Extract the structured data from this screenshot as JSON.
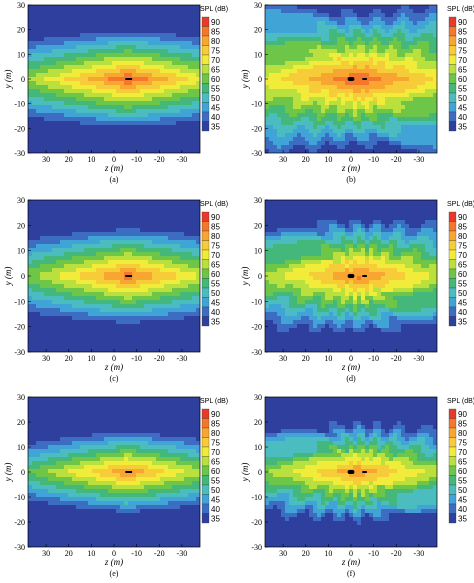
{
  "chart_data": [
    {
      "type": "heatmap",
      "label": "(a)",
      "colorbar": {
        "title": "SPL (dB)",
        "levels": [
          "90",
          "85",
          "80",
          "75",
          "70",
          "65",
          "60",
          "55",
          "50",
          "45",
          "40",
          "35"
        ]
      },
      "xlabel": "z (m)",
      "ylabel": "y (m)",
      "xlim": [
        38,
        -38
      ],
      "ylim": [
        -30,
        30
      ],
      "xticks": [
        "30",
        "20",
        "10",
        "0",
        "-10",
        "-20",
        "-30"
      ],
      "yticks": [
        "-30",
        "-20",
        "-10",
        "0",
        "10",
        "20",
        "30"
      ],
      "field": {
        "style": "smooth",
        "center_z": -6,
        "peak_db": 90,
        "decay_z": 0.55,
        "decay_y": 2.6,
        "ripple": 0
      }
    },
    {
      "type": "heatmap",
      "label": "(b)",
      "colorbar": {
        "title": "SPL (dB)",
        "levels": [
          "90",
          "85",
          "80",
          "75",
          "70",
          "65",
          "60",
          "55",
          "50",
          "45",
          "40",
          "35"
        ]
      },
      "xlabel": "z (m)",
      "ylabel": "y (m)",
      "xlim": [
        38,
        -38
      ],
      "ylim": [
        -30,
        30
      ],
      "xticks": [
        "30",
        "20",
        "10",
        "0",
        "-10",
        "-20",
        "-30"
      ],
      "yticks": [
        "-30",
        "-20",
        "-10",
        "0",
        "10",
        "20",
        "30"
      ],
      "field": {
        "style": "rippled",
        "center_z": -3,
        "peak_db": 90,
        "decay_z": 0.45,
        "decay_y": 1.9,
        "ripple": 6
      }
    },
    {
      "type": "heatmap",
      "label": "(c)",
      "colorbar": {
        "title": "SPL (dB)",
        "levels": [
          "90",
          "85",
          "80",
          "75",
          "70",
          "65",
          "60",
          "55",
          "50",
          "45",
          "40",
          "35"
        ]
      },
      "xlabel": "z (m)",
      "ylabel": "y (m)",
      "xlim": [
        38,
        -38
      ],
      "ylim": [
        -30,
        30
      ],
      "xticks": [
        "30",
        "20",
        "10",
        "0",
        "-10",
        "-20",
        "-30"
      ],
      "yticks": [
        "-30",
        "-20",
        "-10",
        "0",
        "10",
        "20",
        "30"
      ],
      "field": {
        "style": "smooth",
        "center_z": -6,
        "peak_db": 88,
        "decay_z": 0.55,
        "decay_y": 2.6,
        "ripple": 0
      }
    },
    {
      "type": "heatmap",
      "label": "(d)",
      "colorbar": {
        "title": "SPL (dB)",
        "levels": [
          "90",
          "85",
          "80",
          "75",
          "70",
          "65",
          "60",
          "55",
          "50",
          "45",
          "40",
          "35"
        ]
      },
      "xlabel": "z (m)",
      "ylabel": "y (m)",
      "xlim": [
        38,
        -38
      ],
      "ylim": [
        -30,
        30
      ],
      "xticks": [
        "30",
        "20",
        "10",
        "0",
        "-10",
        "-20",
        "-30"
      ],
      "yticks": [
        "-30",
        "-20",
        "-10",
        "0",
        "10",
        "20",
        "30"
      ],
      "field": {
        "style": "rippled",
        "center_z": -3,
        "peak_db": 87,
        "decay_z": 0.5,
        "decay_y": 2.2,
        "ripple": 7
      }
    },
    {
      "type": "heatmap",
      "label": "(e)",
      "colorbar": {
        "title": "SPL (dB)",
        "levels": [
          "90",
          "85",
          "80",
          "75",
          "70",
          "65",
          "60",
          "55",
          "50",
          "45",
          "40",
          "35"
        ]
      },
      "xlabel": "z (m)",
      "ylabel": "y (m)",
      "xlim": [
        38,
        -38
      ],
      "ylim": [
        -30,
        30
      ],
      "xticks": [
        "30",
        "20",
        "10",
        "0",
        "-10",
        "-20",
        "-30"
      ],
      "yticks": [
        "-30",
        "-20",
        "-10",
        "0",
        "10",
        "20",
        "30"
      ],
      "field": {
        "style": "smooth",
        "center_z": -6,
        "peak_db": 85,
        "decay_z": 0.55,
        "decay_y": 2.8,
        "ripple": 0
      }
    },
    {
      "type": "heatmap",
      "label": "(f)",
      "colorbar": {
        "title": "SPL (dB)",
        "levels": [
          "90",
          "85",
          "80",
          "75",
          "70",
          "65",
          "60",
          "55",
          "50",
          "45",
          "40",
          "35"
        ]
      },
      "xlabel": "z (m)",
      "ylabel": "y (m)",
      "xlim": [
        38,
        -38
      ],
      "ylim": [
        -30,
        30
      ],
      "xticks": [
        "30",
        "20",
        "10",
        "0",
        "-10",
        "-20",
        "-30"
      ],
      "yticks": [
        "-30",
        "-20",
        "-10",
        "0",
        "10",
        "20",
        "30"
      ],
      "field": {
        "style": "rippled",
        "center_z": -3,
        "peak_db": 85,
        "decay_z": 0.5,
        "decay_y": 2.4,
        "ripple": 8
      }
    }
  ],
  "colors": [
    "#e8392a",
    "#f4772b",
    "#f9a531",
    "#f6cc38",
    "#f1ec3a",
    "#b9e03c",
    "#6ec648",
    "#44b87a",
    "#4bbdc0",
    "#40a4d6",
    "#3c6dc3",
    "#2f3f9e"
  ]
}
